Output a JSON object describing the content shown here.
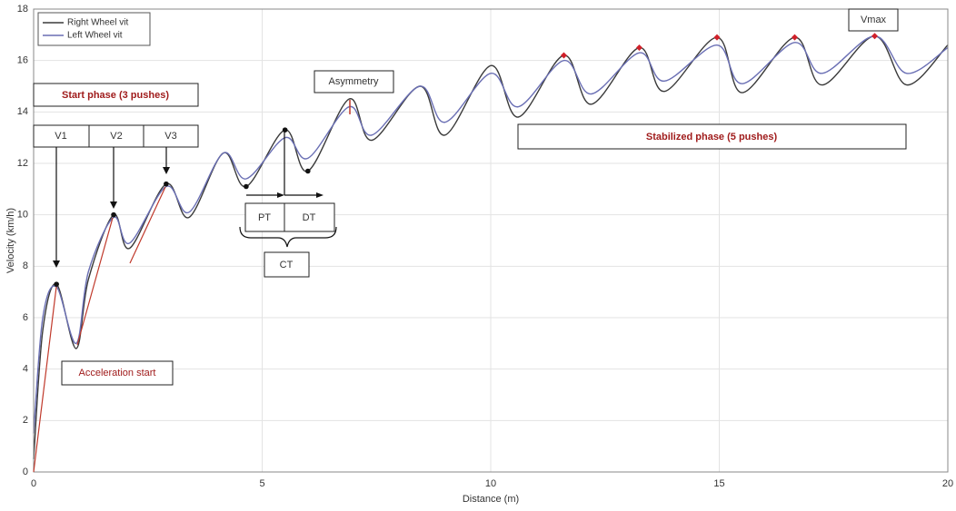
{
  "chart_data": {
    "type": "line",
    "xlabel": "Distance (m)",
    "ylabel": "Velocity (km/h)",
    "x": [
      0,
      0.2,
      0.5,
      0.93,
      1.2,
      1.75,
      2.1,
      2.9,
      3.4,
      4.15,
      4.65,
      5.5,
      6.0,
      6.9,
      7.4,
      8.45,
      9.0,
      10.0,
      10.6,
      11.6,
      12.2,
      13.25,
      13.8,
      14.95,
      15.5,
      16.65,
      17.25,
      18.4,
      19.1,
      20
    ],
    "series": [
      {
        "name": "Right Wheel vit",
        "color": "#3a3a3a",
        "values": [
          0.5,
          5.5,
          7.3,
          4.8,
          7.5,
          10.0,
          8.7,
          11.2,
          9.9,
          12.4,
          11.1,
          13.3,
          11.7,
          14.5,
          12.9,
          15.0,
          13.1,
          15.8,
          13.8,
          16.2,
          14.3,
          16.5,
          14.8,
          16.9,
          14.75,
          16.9,
          15.05,
          16.95,
          15.05,
          16.6
        ]
      },
      {
        "name": "Left Wheel vit",
        "color": "#6a6fb4",
        "values": [
          1.5,
          6.0,
          7.2,
          5.0,
          7.8,
          9.9,
          8.9,
          11.1,
          10.1,
          12.4,
          11.4,
          13.0,
          12.2,
          14.2,
          13.1,
          15.0,
          13.6,
          15.5,
          14.2,
          16.0,
          14.7,
          16.3,
          15.2,
          16.6,
          15.1,
          16.7,
          15.5,
          16.95,
          15.5,
          16.5
        ]
      }
    ],
    "xlim": [
      0,
      20
    ],
    "xticks": [
      0,
      5,
      10,
      15,
      20
    ],
    "ylim": [
      0,
      18
    ],
    "yticks": [
      0,
      2,
      4,
      6,
      8,
      10,
      12,
      14,
      16,
      18
    ],
    "grid": true,
    "legend": "upper left",
    "annotations": {
      "start_phase": "Start phase (3 pushes)",
      "v1": "V1",
      "v2": "V2",
      "v3": "V3",
      "asymmetry": "Asymmetry",
      "stabilized": "Stabilized phase (5 pushes)",
      "vmax": "Vmax",
      "pt": "PT",
      "dt": "DT",
      "ct": "CT",
      "acceleration": "Acceleration start"
    }
  }
}
